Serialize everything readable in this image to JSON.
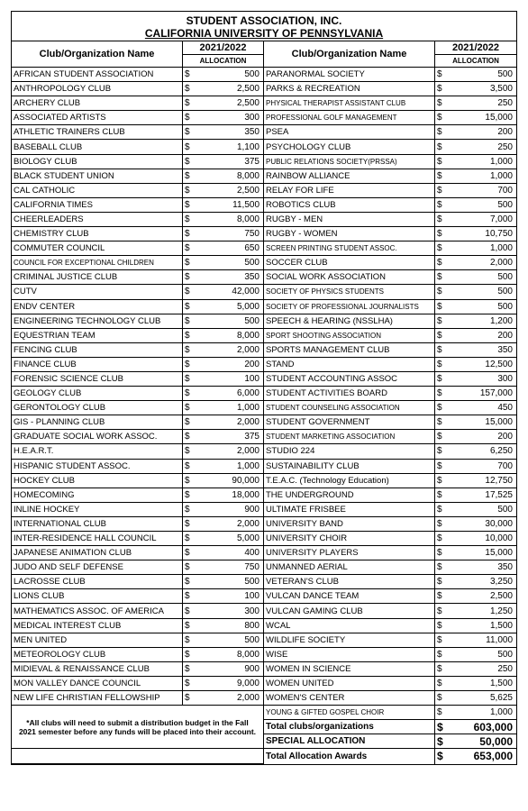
{
  "header": {
    "org": "STUDENT ASSOCIATION, INC.",
    "univ": "CALIFORNIA UNIVERSITY OF PENNSYLVANIA",
    "col_name": "Club/Organization Name",
    "year": "2021/2022",
    "alloc": "ALLOCATION"
  },
  "footnote": "*All clubs will need to submit a distribution budget in the Fall 2021 semester before any funds will be placed into their account.",
  "totals": {
    "clubs_label": "Total clubs/organizations",
    "clubs_amt": "603,000",
    "special_label": "SPECIAL  ALLOCATION",
    "special_amt": "50,000",
    "total_label": "Total Allocation Awards",
    "total_amt": "653,000"
  },
  "left": [
    {
      "n": "AFRICAN STUDENT ASSOCIATION",
      "a": "500"
    },
    {
      "n": "ANTHROPOLOGY CLUB",
      "a": "2,500"
    },
    {
      "n": "ARCHERY CLUB",
      "a": "2,500"
    },
    {
      "n": "ASSOCIATED ARTISTS",
      "a": "300"
    },
    {
      "n": "ATHLETIC TRAINERS CLUB",
      "a": "350"
    },
    {
      "n": "BASEBALL CLUB",
      "a": "1,100"
    },
    {
      "n": "BIOLOGY CLUB",
      "a": "375"
    },
    {
      "n": "BLACK STUDENT UNION",
      "a": "8,000"
    },
    {
      "n": "CAL CATHOLIC",
      "a": "2,500"
    },
    {
      "n": "CALIFORNIA TIMES",
      "a": "11,500"
    },
    {
      "n": "CHEERLEADERS",
      "a": "8,000"
    },
    {
      "n": "CHEMISTRY CLUB",
      "a": "750"
    },
    {
      "n": "COMMUTER COUNCIL",
      "a": "650"
    },
    {
      "n": "COUNCIL FOR EXCEPTIONAL CHILDREN",
      "a": "500",
      "s": 1
    },
    {
      "n": "CRIMINAL JUSTICE CLUB",
      "a": "350"
    },
    {
      "n": "CUTV",
      "a": "42,000"
    },
    {
      "n": "ENDV CENTER",
      "a": "5,000"
    },
    {
      "n": "ENGINEERING TECHNOLOGY CLUB",
      "a": "500"
    },
    {
      "n": "EQUESTRIAN TEAM",
      "a": "8,000"
    },
    {
      "n": "FENCING CLUB",
      "a": "2,000"
    },
    {
      "n": "FINANCE CLUB",
      "a": "200"
    },
    {
      "n": "FORENSIC SCIENCE CLUB",
      "a": "100"
    },
    {
      "n": "GEOLOGY CLUB",
      "a": "6,000"
    },
    {
      "n": "GERONTOLOGY CLUB",
      "a": "1,000"
    },
    {
      "n": "GIS - PLANNING CLUB",
      "a": "2,000"
    },
    {
      "n": "GRADUATE SOCIAL WORK ASSOC.",
      "a": "375"
    },
    {
      "n": "H.E.A.R.T.",
      "a": "2,000"
    },
    {
      "n": "HISPANIC STUDENT ASSOC.",
      "a": "1,000"
    },
    {
      "n": "HOCKEY CLUB",
      "a": "90,000"
    },
    {
      "n": "HOMECOMING",
      "a": "18,000"
    },
    {
      "n": "INLINE HOCKEY",
      "a": "900"
    },
    {
      "n": "INTERNATIONAL CLUB",
      "a": "2,000"
    },
    {
      "n": "INTER-RESIDENCE HALL COUNCIL",
      "a": "5,000"
    },
    {
      "n": "JAPANESE ANIMATION CLUB",
      "a": "400"
    },
    {
      "n": "JUDO AND SELF DEFENSE",
      "a": "750"
    },
    {
      "n": "LACROSSE CLUB",
      "a": "500"
    },
    {
      "n": "LIONS CLUB",
      "a": "100"
    },
    {
      "n": "MATHEMATICS ASSOC. OF AMERICA",
      "a": "300"
    },
    {
      "n": "MEDICAL INTEREST CLUB",
      "a": "800"
    },
    {
      "n": "MEN UNITED",
      "a": "500"
    },
    {
      "n": "METEOROLOGY CLUB",
      "a": "8,000"
    },
    {
      "n": "MIDIEVAL & RENAISSANCE CLUB",
      "a": "900"
    },
    {
      "n": "MON VALLEY DANCE COUNCIL",
      "a": "9,000"
    },
    {
      "n": "NEW LIFE CHRISTIAN FELLOWSHIP",
      "a": "2,000"
    }
  ],
  "right": [
    {
      "n": "PARANORMAL SOCIETY",
      "a": "500"
    },
    {
      "n": "PARKS & RECREATION",
      "a": "3,500"
    },
    {
      "n": "PHYSICAL THERAPIST ASSISTANT CLUB",
      "a": "250",
      "s": 1
    },
    {
      "n": "PROFESSIONAL GOLF MANAGEMENT",
      "a": "15,000",
      "s": 1
    },
    {
      "n": "PSEA",
      "a": "200"
    },
    {
      "n": "PSYCHOLOGY CLUB",
      "a": "250"
    },
    {
      "n": "PUBLIC RELATIONS SOCIETY(PRSSA)",
      "a": "1,000",
      "s": 1
    },
    {
      "n": "RAINBOW ALLIANCE",
      "a": "1,000"
    },
    {
      "n": "RELAY FOR LIFE",
      "a": "700"
    },
    {
      "n": "ROBOTICS CLUB",
      "a": "500"
    },
    {
      "n": "RUGBY - MEN",
      "a": "7,000"
    },
    {
      "n": "RUGBY - WOMEN",
      "a": "10,750"
    },
    {
      "n": "SCREEN PRINTING STUDENT ASSOC.",
      "a": "1,000",
      "s": 1
    },
    {
      "n": "SOCCER CLUB",
      "a": "2,000"
    },
    {
      "n": "SOCIAL WORK ASSOCIATION",
      "a": "500"
    },
    {
      "n": "SOCIETY OF PHYSICS STUDENTS",
      "a": "500",
      "s": 1
    },
    {
      "n": "SOCIETY OF PROFESSIONAL JOURNALISTS",
      "a": "500",
      "s": 1
    },
    {
      "n": "SPEECH & HEARING (NSSLHA)",
      "a": "1,200"
    },
    {
      "n": "SPORT SHOOTING ASSOCIATION",
      "a": "200",
      "s": 1
    },
    {
      "n": "SPORTS MANAGEMENT CLUB",
      "a": "350"
    },
    {
      "n": "STAND",
      "a": "12,500"
    },
    {
      "n": "STUDENT ACCOUNTING ASSOC",
      "a": "300"
    },
    {
      "n": "STUDENT ACTIVITIES BOARD",
      "a": "157,000"
    },
    {
      "n": "STUDENT COUNSELING ASSOCIATION",
      "a": "450",
      "s": 1
    },
    {
      "n": "STUDENT GOVERNMENT",
      "a": "15,000"
    },
    {
      "n": "STUDENT MARKETING ASSOCIATION",
      "a": "200",
      "s": 1
    },
    {
      "n": "STUDIO 224",
      "a": "6,250"
    },
    {
      "n": "SUSTAINABILITY CLUB",
      "a": "700"
    },
    {
      "n": "T.E.A.C. (Technology Education)",
      "a": "12,750"
    },
    {
      "n": "THE UNDERGROUND",
      "a": "17,525"
    },
    {
      "n": "ULTIMATE FRISBEE",
      "a": "500"
    },
    {
      "n": "UNIVERSITY BAND",
      "a": "30,000"
    },
    {
      "n": "UNIVERSITY CHOIR",
      "a": "10,000"
    },
    {
      "n": "UNIVERSITY PLAYERS",
      "a": "15,000"
    },
    {
      "n": "UNMANNED AERIAL",
      "a": "350"
    },
    {
      "n": "VETERAN'S CLUB",
      "a": "3,250"
    },
    {
      "n": "VULCAN DANCE TEAM",
      "a": "2,500"
    },
    {
      "n": "VULCAN GAMING CLUB",
      "a": "1,250"
    },
    {
      "n": "WCAL",
      "a": "1,500"
    },
    {
      "n": "WILDLIFE SOCIETY",
      "a": "11,000"
    },
    {
      "n": "WISE",
      "a": "500"
    },
    {
      "n": "WOMEN IN SCIENCE",
      "a": "250"
    },
    {
      "n": "WOMEN UNITED",
      "a": "1,500"
    },
    {
      "n": "WOMEN'S CENTER",
      "a": "5,625"
    },
    {
      "n": "YOUNG & GIFTED GOSPEL CHOIR",
      "a": "1,000",
      "s": 1
    }
  ]
}
